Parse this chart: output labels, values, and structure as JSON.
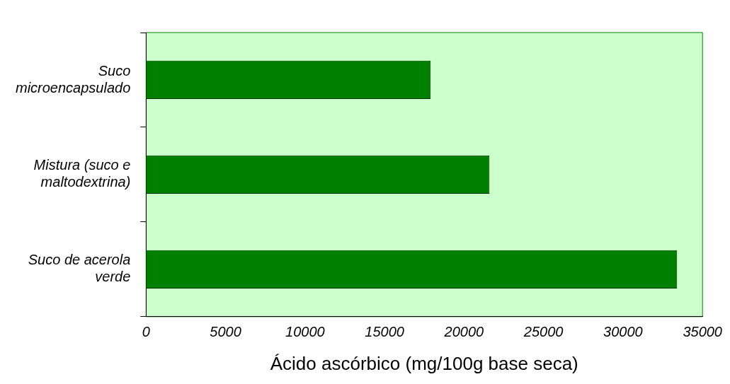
{
  "chart_data": {
    "type": "bar",
    "orientation": "horizontal",
    "xlabel": "Ácido ascórbico (mg/100g base seca)",
    "categories": [
      "Suco microencapsulado",
      "Mistura (suco e maltodextrina)",
      "Suco de acerola verde"
    ],
    "values": [
      17900,
      21600,
      33400
    ],
    "color": "#008000",
    "xlim": [
      0,
      35000
    ],
    "xticks": [
      0,
      5000,
      10000,
      15000,
      20000,
      25000,
      30000,
      35000
    ],
    "grid": false,
    "legend": false
  }
}
